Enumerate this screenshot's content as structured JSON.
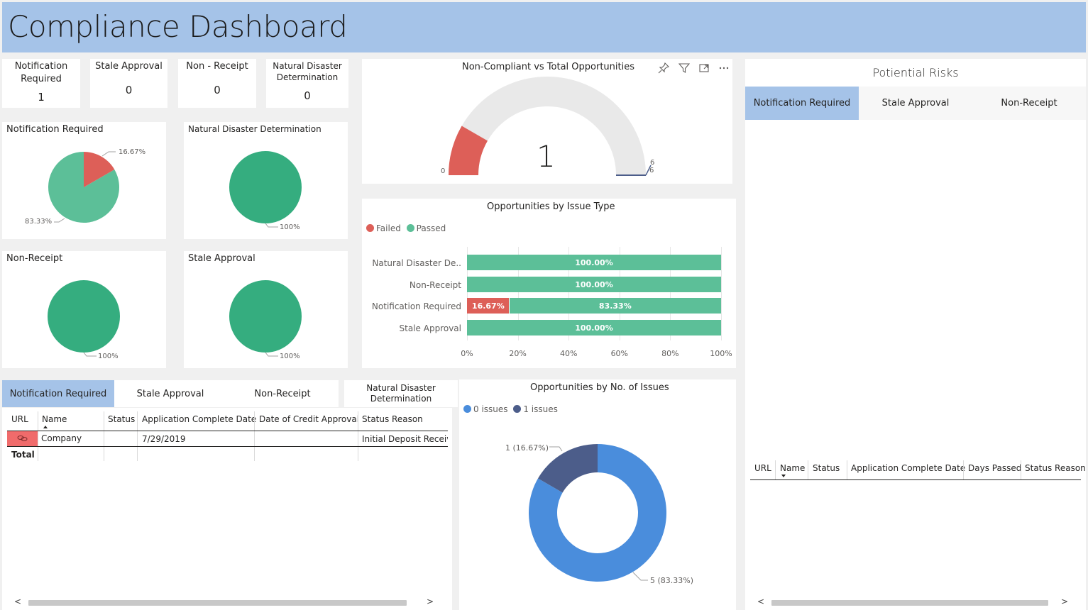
{
  "header": {
    "title": "Compliance Dashboard"
  },
  "cards": [
    {
      "label": "Notification Required",
      "value": "1"
    },
    {
      "label": "Stale Approval",
      "value": "0"
    },
    {
      "label": "Non - Receipt",
      "value": "0"
    },
    {
      "label": "Natural Disaster Determination",
      "value": "0"
    }
  ],
  "pies": {
    "notification": {
      "title": "Notification Required",
      "label_small": "16.67%",
      "label_large": "83.33%"
    },
    "natural": {
      "title": "Natural Disaster Determination",
      "label": "100%"
    },
    "nonreceipt": {
      "title": "Non-Receipt",
      "label": "100%"
    },
    "stale": {
      "title": "Stale Approval",
      "label": "100%"
    }
  },
  "gauge": {
    "title": "Non-Compliant vs Total Opportunities",
    "value": "1",
    "min": "0",
    "max": "6",
    "target": "6",
    "fraction": 0.1667
  },
  "colors": {
    "failed": "#dd5f58",
    "passed": "#5cbf98",
    "pie_full": "#35ad7f",
    "issues0": "#4a8ddc",
    "issues1": "#4c5d8a",
    "accent": "#a5c3e8",
    "gauge_bg": "#e9e9e9"
  },
  "chart_data": [
    {
      "type": "bar",
      "title": "Opportunities by Issue Type",
      "categories": [
        "Natural Disaster De..",
        "Non-Receipt",
        "Notification Required",
        "Stale Approval"
      ],
      "series": [
        {
          "name": "Failed",
          "values": [
            0,
            0,
            16.67,
            0
          ]
        },
        {
          "name": "Passed",
          "values": [
            100,
            100,
            83.33,
            100
          ]
        }
      ],
      "data_labels": [
        {
          "failed": "",
          "passed": "100.00%"
        },
        {
          "failed": "",
          "passed": "100.00%"
        },
        {
          "failed": "16.67%",
          "passed": "83.33%"
        },
        {
          "failed": "",
          "passed": "100.00%"
        }
      ],
      "x_ticks": [
        "0%",
        "20%",
        "40%",
        "60%",
        "80%",
        "100%"
      ],
      "xlim": [
        0,
        100
      ],
      "legend_position": "top-left"
    },
    {
      "type": "pie",
      "title": "Opportunities by No. of Issues",
      "categories": [
        "0 issues",
        "1 issues"
      ],
      "values": [
        5,
        1
      ],
      "data_labels": [
        "5 (83.33%)",
        "1 (16.67%)"
      ],
      "legend_position": "top-left"
    }
  ],
  "risks": {
    "title": "Potiential Risks",
    "tabs": [
      "Notification Required",
      "Stale Approval",
      "Non-Receipt"
    ],
    "columns": [
      "URL",
      "Name",
      "Status",
      "Application Complete Date",
      "Days Passed",
      "Status Reason"
    ]
  },
  "bottom_tabs": [
    "Notification Required",
    "Stale Approval",
    "Non-Receipt",
    "Natural Disaster Determination"
  ],
  "bottom_table": {
    "columns": [
      "URL",
      "Name",
      "Status",
      "Application Complete Date",
      "Date of Credit Approval",
      "Status Reason"
    ],
    "rows": [
      {
        "url": "link-icon",
        "name": "Company",
        "status": "",
        "app_date": "7/29/2019",
        "credit_date": "",
        "reason": "Initial Deposit Receive"
      }
    ],
    "total_label": "Total"
  },
  "scroll": {
    "left": "<",
    "right": ">"
  },
  "icons": {
    "pin": "pin-icon",
    "filter": "filter-icon",
    "focus": "focus-mode-icon",
    "more": "more-options-icon"
  }
}
